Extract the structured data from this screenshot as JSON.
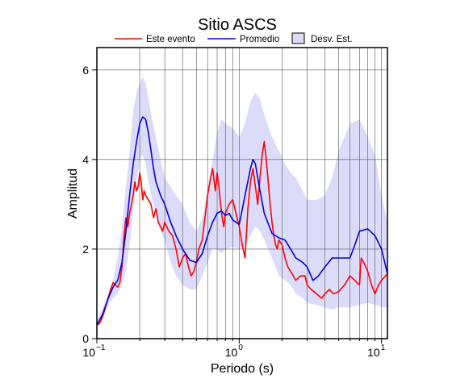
{
  "chart_data": {
    "type": "line",
    "title": "Sitio ASCS",
    "xlabel": "Periodo (s)",
    "ylabel": "Amplitud",
    "x_scale": "log",
    "xlim": [
      0.1,
      11
    ],
    "ylim": [
      0,
      6.5
    ],
    "y_ticks": [
      "0",
      "2",
      "4",
      "6"
    ],
    "x_ticks": [
      {
        "base": "10",
        "exp": "−1"
      },
      {
        "base": "10",
        "exp": "0"
      },
      {
        "base": "10",
        "exp": "1"
      }
    ],
    "grid": true,
    "legend_position": "top",
    "band": {
      "name": "Desv. Est.",
      "color": "#dcdcfa",
      "x": [
        0.1,
        0.11,
        0.12,
        0.13,
        0.14,
        0.15,
        0.16,
        0.17,
        0.18,
        0.19,
        0.2,
        0.21,
        0.22,
        0.23,
        0.24,
        0.26,
        0.28,
        0.3,
        0.33,
        0.36,
        0.4,
        0.45,
        0.5,
        0.55,
        0.6,
        0.65,
        0.7,
        0.75,
        0.8,
        0.9,
        1.0,
        1.1,
        1.2,
        1.3,
        1.4,
        1.5,
        1.7,
        1.9,
        2.1,
        2.3,
        2.5,
        2.8,
        3.0,
        3.5,
        4.0,
        4.5,
        5.0,
        6.0,
        7.0,
        8.0,
        9.0,
        10.0,
        11.0
      ],
      "upper": [
        0.4,
        0.7,
        1.0,
        1.3,
        1.8,
        2.5,
        3.4,
        4.2,
        5.1,
        5.5,
        5.7,
        5.85,
        5.7,
        5.4,
        5.0,
        4.5,
        4.0,
        3.6,
        3.4,
        3.2,
        3.0,
        2.6,
        2.4,
        2.7,
        3.3,
        4.0,
        4.6,
        4.9,
        4.8,
        4.7,
        4.5,
        4.8,
        5.3,
        5.5,
        5.35,
        5.0,
        4.5,
        4.2,
        3.9,
        3.7,
        3.6,
        3.3,
        3.1,
        3.1,
        3.2,
        3.6,
        4.2,
        4.8,
        4.9,
        4.5,
        4.1,
        3.2,
        2.6
      ],
      "lower": [
        0.25,
        0.45,
        0.75,
        0.9,
        1.0,
        1.2,
        1.5,
        2.1,
        2.8,
        3.5,
        4.0,
        4.1,
        3.9,
        3.5,
        3.2,
        2.8,
        2.4,
        2.2,
        1.7,
        1.4,
        1.2,
        1.1,
        1.1,
        1.4,
        1.7,
        2.0,
        2.0,
        1.9,
        2.0,
        2.05,
        2.0,
        2.1,
        2.3,
        2.5,
        2.4,
        2.2,
        1.8,
        1.4,
        1.3,
        1.2,
        1.0,
        0.9,
        0.8,
        0.75,
        0.7,
        0.65,
        0.7,
        0.7,
        0.75,
        0.8,
        0.75,
        0.7,
        0.7
      ]
    },
    "series": [
      {
        "name": "Este evento",
        "color": "#ff0000",
        "x": [
          0.1,
          0.105,
          0.11,
          0.115,
          0.12,
          0.125,
          0.13,
          0.135,
          0.14,
          0.145,
          0.15,
          0.155,
          0.16,
          0.165,
          0.17,
          0.175,
          0.18,
          0.185,
          0.19,
          0.195,
          0.2,
          0.205,
          0.21,
          0.215,
          0.22,
          0.23,
          0.24,
          0.25,
          0.26,
          0.27,
          0.28,
          0.29,
          0.3,
          0.32,
          0.34,
          0.36,
          0.38,
          0.4,
          0.42,
          0.44,
          0.46,
          0.48,
          0.5,
          0.52,
          0.55,
          0.58,
          0.6,
          0.63,
          0.65,
          0.68,
          0.7,
          0.72,
          0.74,
          0.76,
          0.78,
          0.8,
          0.85,
          0.9,
          0.95,
          1.0,
          1.05,
          1.1,
          1.15,
          1.2,
          1.25,
          1.3,
          1.35,
          1.4,
          1.45,
          1.5,
          1.55,
          1.6,
          1.65,
          1.7,
          1.75,
          1.8,
          1.85,
          1.9,
          2.0,
          2.1,
          2.2,
          2.3,
          2.4,
          2.5,
          2.7,
          2.9,
          3.0,
          3.2,
          3.5,
          3.8,
          4.0,
          4.3,
          4.6,
          5.0,
          5.5,
          6.0,
          6.5,
          7.0,
          7.2,
          7.5,
          8.0,
          8.5,
          9.0,
          9.5,
          10.0,
          11.0
        ],
        "y": [
          0.3,
          0.35,
          0.5,
          0.7,
          0.9,
          1.1,
          1.25,
          1.2,
          1.15,
          1.25,
          1.6,
          2.3,
          2.7,
          2.5,
          2.8,
          3.0,
          3.2,
          3.5,
          3.3,
          3.4,
          3.7,
          3.5,
          3.1,
          3.3,
          3.2,
          3.1,
          3.0,
          2.7,
          2.9,
          2.6,
          2.5,
          2.4,
          2.6,
          2.4,
          2.3,
          2.0,
          1.6,
          1.8,
          1.9,
          1.6,
          1.4,
          1.5,
          1.7,
          2.0,
          2.2,
          2.8,
          3.2,
          3.6,
          3.8,
          3.3,
          3.7,
          3.4,
          3.0,
          2.7,
          2.5,
          2.8,
          3.0,
          3.1,
          2.8,
          2.5,
          2.1,
          1.8,
          2.9,
          3.5,
          3.8,
          3.4,
          3.0,
          3.6,
          4.1,
          4.4,
          4.0,
          3.5,
          3.0,
          2.6,
          2.3,
          2.1,
          2.0,
          2.2,
          2.1,
          1.8,
          1.6,
          1.5,
          1.4,
          1.3,
          1.4,
          1.4,
          1.2,
          1.1,
          1.0,
          0.9,
          1.0,
          1.1,
          1.0,
          1.05,
          1.2,
          1.4,
          1.3,
          1.2,
          1.8,
          1.7,
          1.5,
          1.2,
          1.0,
          1.2,
          1.3,
          1.45
        ]
      },
      {
        "name": "Promedio",
        "color": "#0000dd",
        "x": [
          0.1,
          0.11,
          0.12,
          0.13,
          0.14,
          0.15,
          0.16,
          0.17,
          0.18,
          0.19,
          0.2,
          0.21,
          0.22,
          0.23,
          0.24,
          0.25,
          0.26,
          0.28,
          0.3,
          0.33,
          0.36,
          0.4,
          0.45,
          0.5,
          0.55,
          0.6,
          0.65,
          0.7,
          0.75,
          0.8,
          0.85,
          0.9,
          1.0,
          1.1,
          1.2,
          1.25,
          1.3,
          1.4,
          1.5,
          1.7,
          1.9,
          2.1,
          2.3,
          2.5,
          2.8,
          3.0,
          3.3,
          3.6,
          4.0,
          4.5,
          5.0,
          5.5,
          6.0,
          6.5,
          7.0,
          8.0,
          9.0,
          10.0,
          11.0
        ],
        "y": [
          0.3,
          0.55,
          0.9,
          1.15,
          1.3,
          1.7,
          2.4,
          3.2,
          3.9,
          4.4,
          4.8,
          4.95,
          4.9,
          4.6,
          4.2,
          3.8,
          3.5,
          3.2,
          3.0,
          2.6,
          2.3,
          2.0,
          1.75,
          1.7,
          1.9,
          2.3,
          2.6,
          2.8,
          2.85,
          2.75,
          2.8,
          2.65,
          2.55,
          3.2,
          3.8,
          4.0,
          3.9,
          3.3,
          2.8,
          2.35,
          2.25,
          2.2,
          2.0,
          1.8,
          1.7,
          1.6,
          1.3,
          1.4,
          1.6,
          1.8,
          1.8,
          1.8,
          1.8,
          2.1,
          2.4,
          2.45,
          2.3,
          2.0,
          1.45
        ]
      }
    ]
  }
}
